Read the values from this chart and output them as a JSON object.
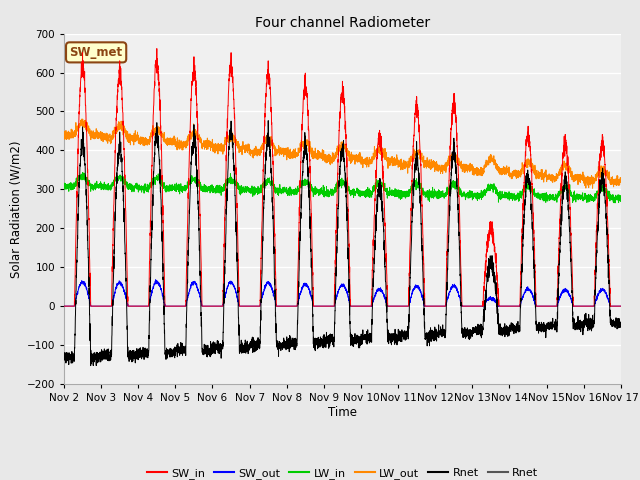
{
  "title": "Four channel Radiometer",
  "xlabel": "Time",
  "ylabel": "Solar Radiation (W/m2)",
  "ylim": [
    -200,
    700
  ],
  "yticks": [
    -200,
    -100,
    0,
    100,
    200,
    300,
    400,
    500,
    600,
    700
  ],
  "xlim": [
    0,
    15
  ],
  "xtick_labels": [
    "Nov 2",
    "Nov 3",
    "Nov 4",
    "Nov 5",
    "Nov 6",
    "Nov 7",
    "Nov 8",
    "Nov 9",
    "Nov 10",
    "Nov 11",
    "Nov 12",
    "Nov 13",
    "Nov 14",
    "Nov 15",
    "Nov 16",
    "Nov 17"
  ],
  "bg_color": "#e8e8e8",
  "plot_bg_color": "#f0f0f0",
  "annotation_text": "SW_met",
  "annotation_bg": "#ffffcc",
  "annotation_border": "#8b4513",
  "colors": {
    "SW_in": "#ff0000",
    "SW_out": "#0000ff",
    "LW_in": "#00cc00",
    "LW_out": "#ff8800",
    "Rnet_black": "#000000",
    "Rnet_dark": "#555555"
  },
  "legend_entries": [
    "SW_in",
    "SW_out",
    "LW_in",
    "LW_out",
    "Rnet",
    "Rnet"
  ]
}
